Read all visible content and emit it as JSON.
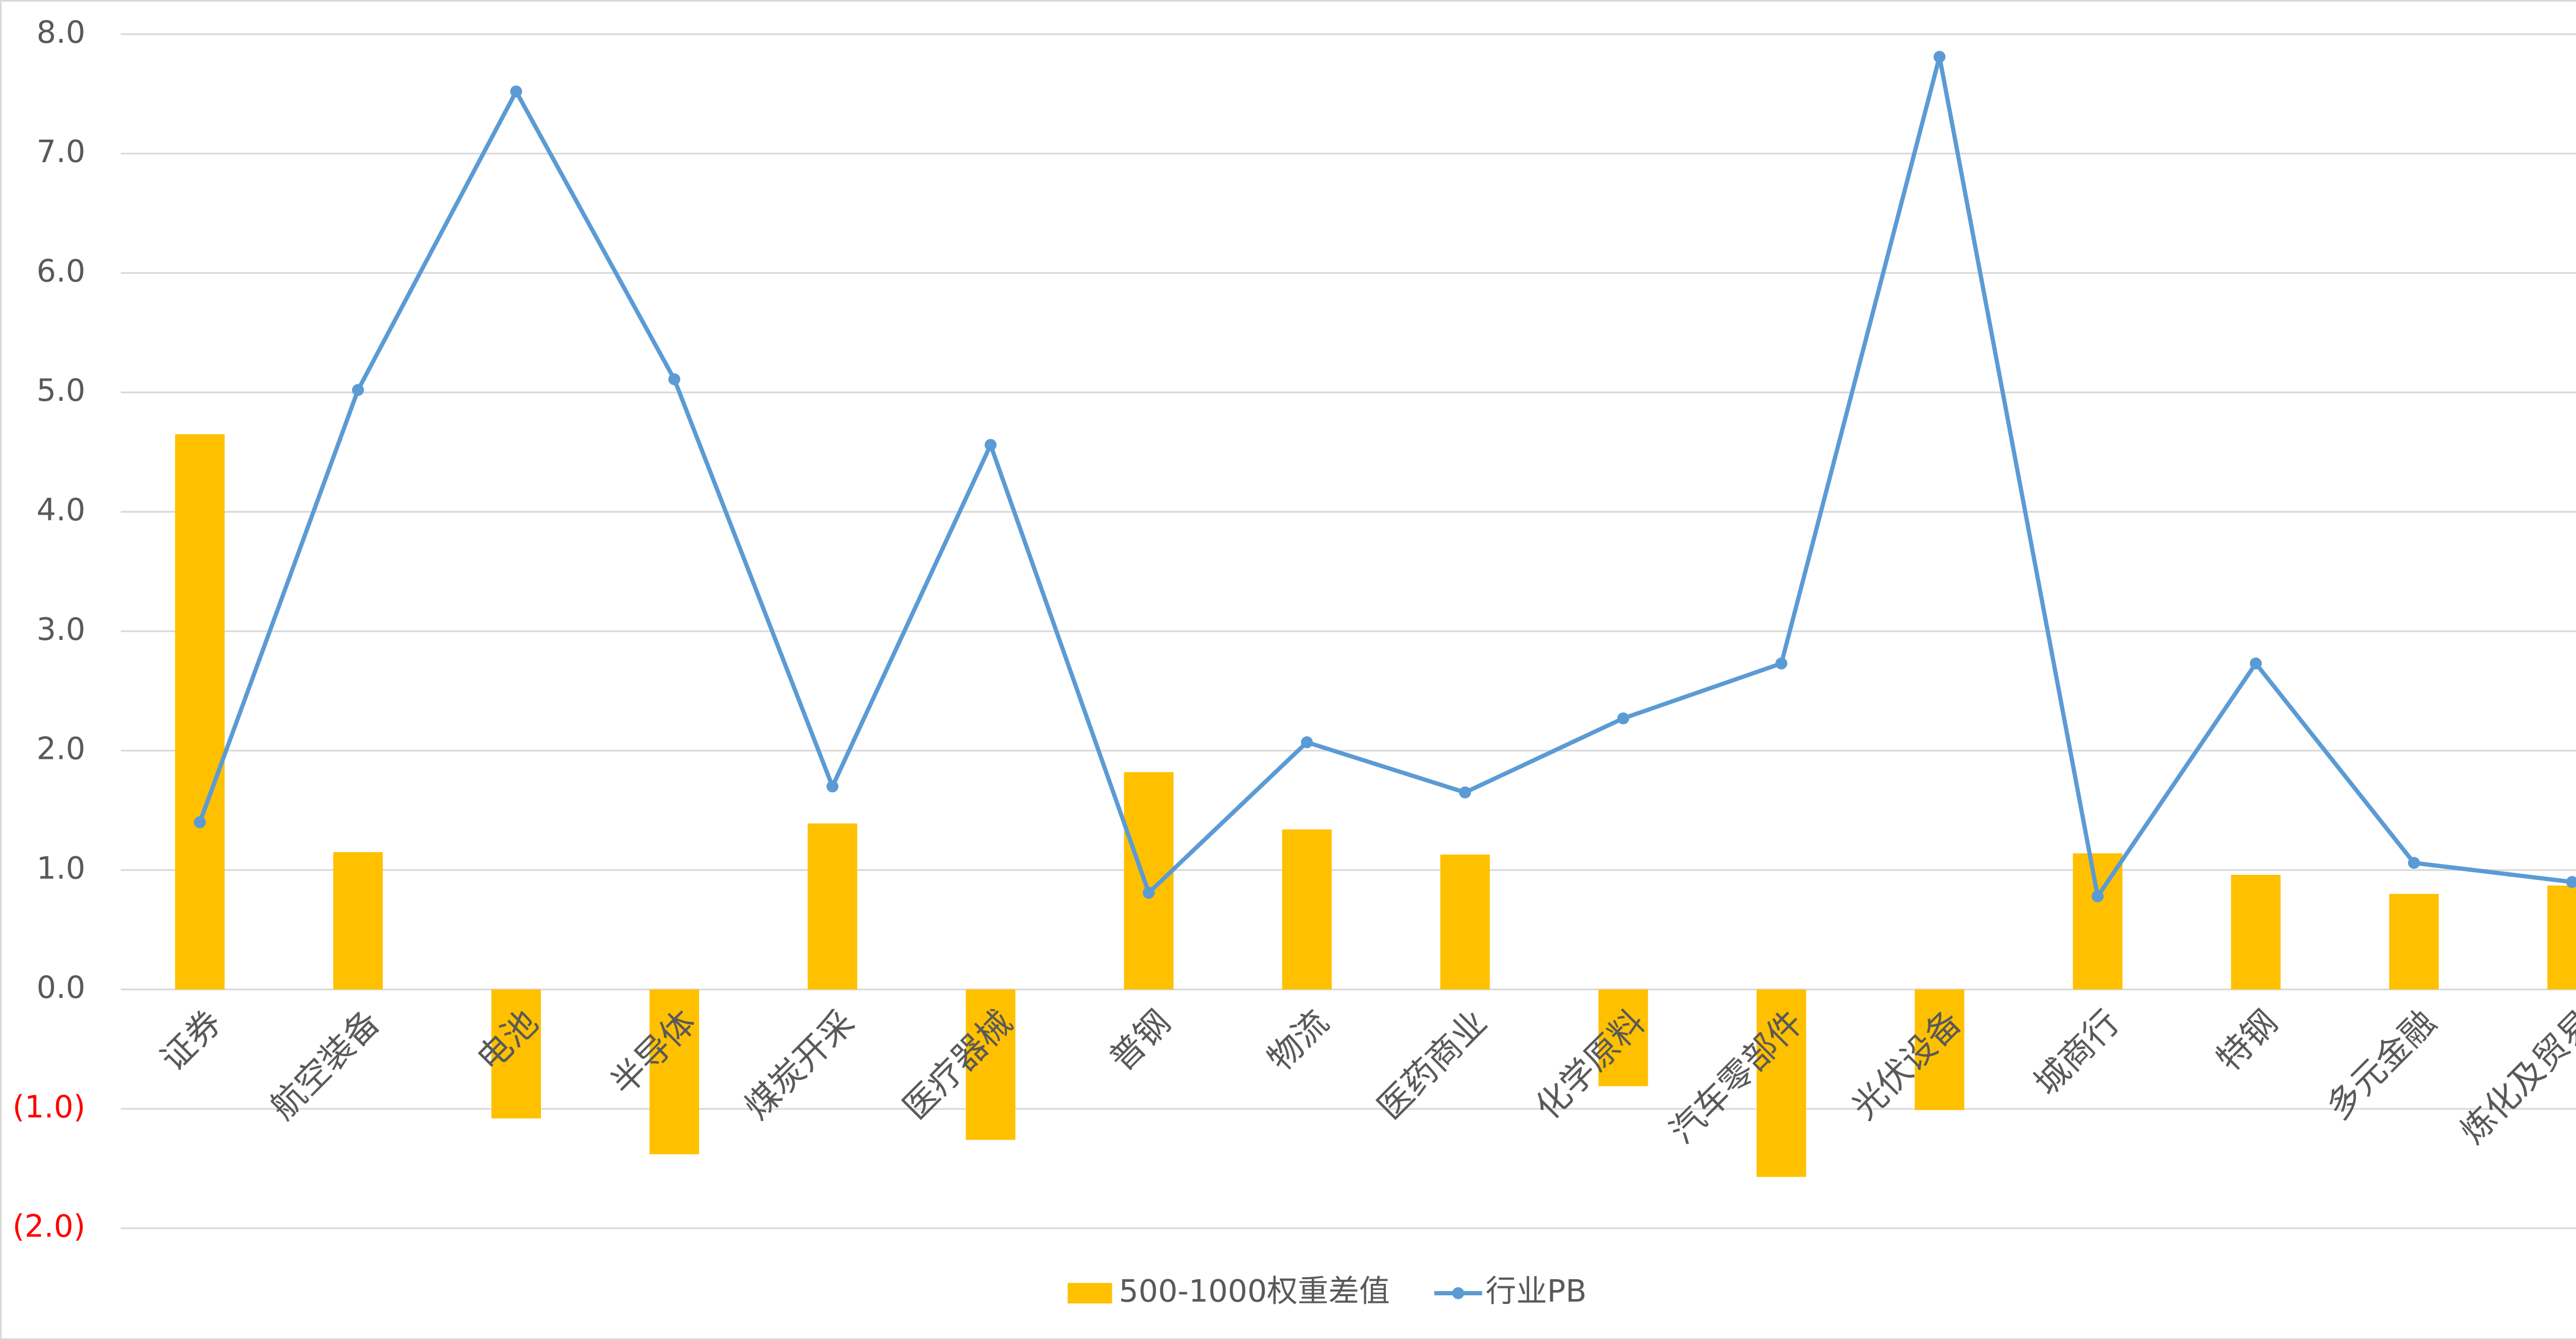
{
  "chart_data": {
    "type": "combo",
    "categories": [
      "证券",
      "航空装备",
      "电池",
      "半导体",
      "煤炭开采",
      "医疗器械",
      "普钢",
      "物流",
      "医药商业",
      "化学原料",
      "汽车零部件",
      "光伏设备",
      "城商行",
      "特钢",
      "多元金融",
      "炼化及贸易"
    ],
    "series": [
      {
        "name": "500-1000权重差值",
        "type": "bar",
        "color": "#ffc000",
        "values": [
          4.65,
          1.15,
          -1.08,
          -1.38,
          1.39,
          -1.26,
          1.82,
          1.34,
          1.13,
          -0.81,
          -1.57,
          -1.01,
          1.14,
          0.96,
          0.8,
          0.87
        ]
      },
      {
        "name": "行业PB",
        "type": "line",
        "color": "#5b9bd5",
        "values": [
          1.4,
          5.02,
          7.52,
          5.11,
          1.7,
          4.56,
          0.81,
          2.07,
          1.65,
          2.27,
          2.73,
          7.81,
          0.78,
          2.73,
          1.06,
          0.9
        ]
      }
    ],
    "ylim": [
      -2,
      8
    ],
    "yticks": [
      {
        "value": -2,
        "label": "(2.0)"
      },
      {
        "value": -1,
        "label": "(1.0)"
      },
      {
        "value": 0,
        "label": "0.0"
      },
      {
        "value": 1,
        "label": "1.0"
      },
      {
        "value": 2,
        "label": "2.0"
      },
      {
        "value": 3,
        "label": "3.0"
      },
      {
        "value": 4,
        "label": "4.0"
      },
      {
        "value": 5,
        "label": "5.0"
      },
      {
        "value": 6,
        "label": "6.0"
      },
      {
        "value": 7,
        "label": "7.0"
      },
      {
        "value": 8,
        "label": "8.0"
      }
    ],
    "negative_tick_color": "#ff0000",
    "grid": true,
    "legend": "bottom"
  }
}
